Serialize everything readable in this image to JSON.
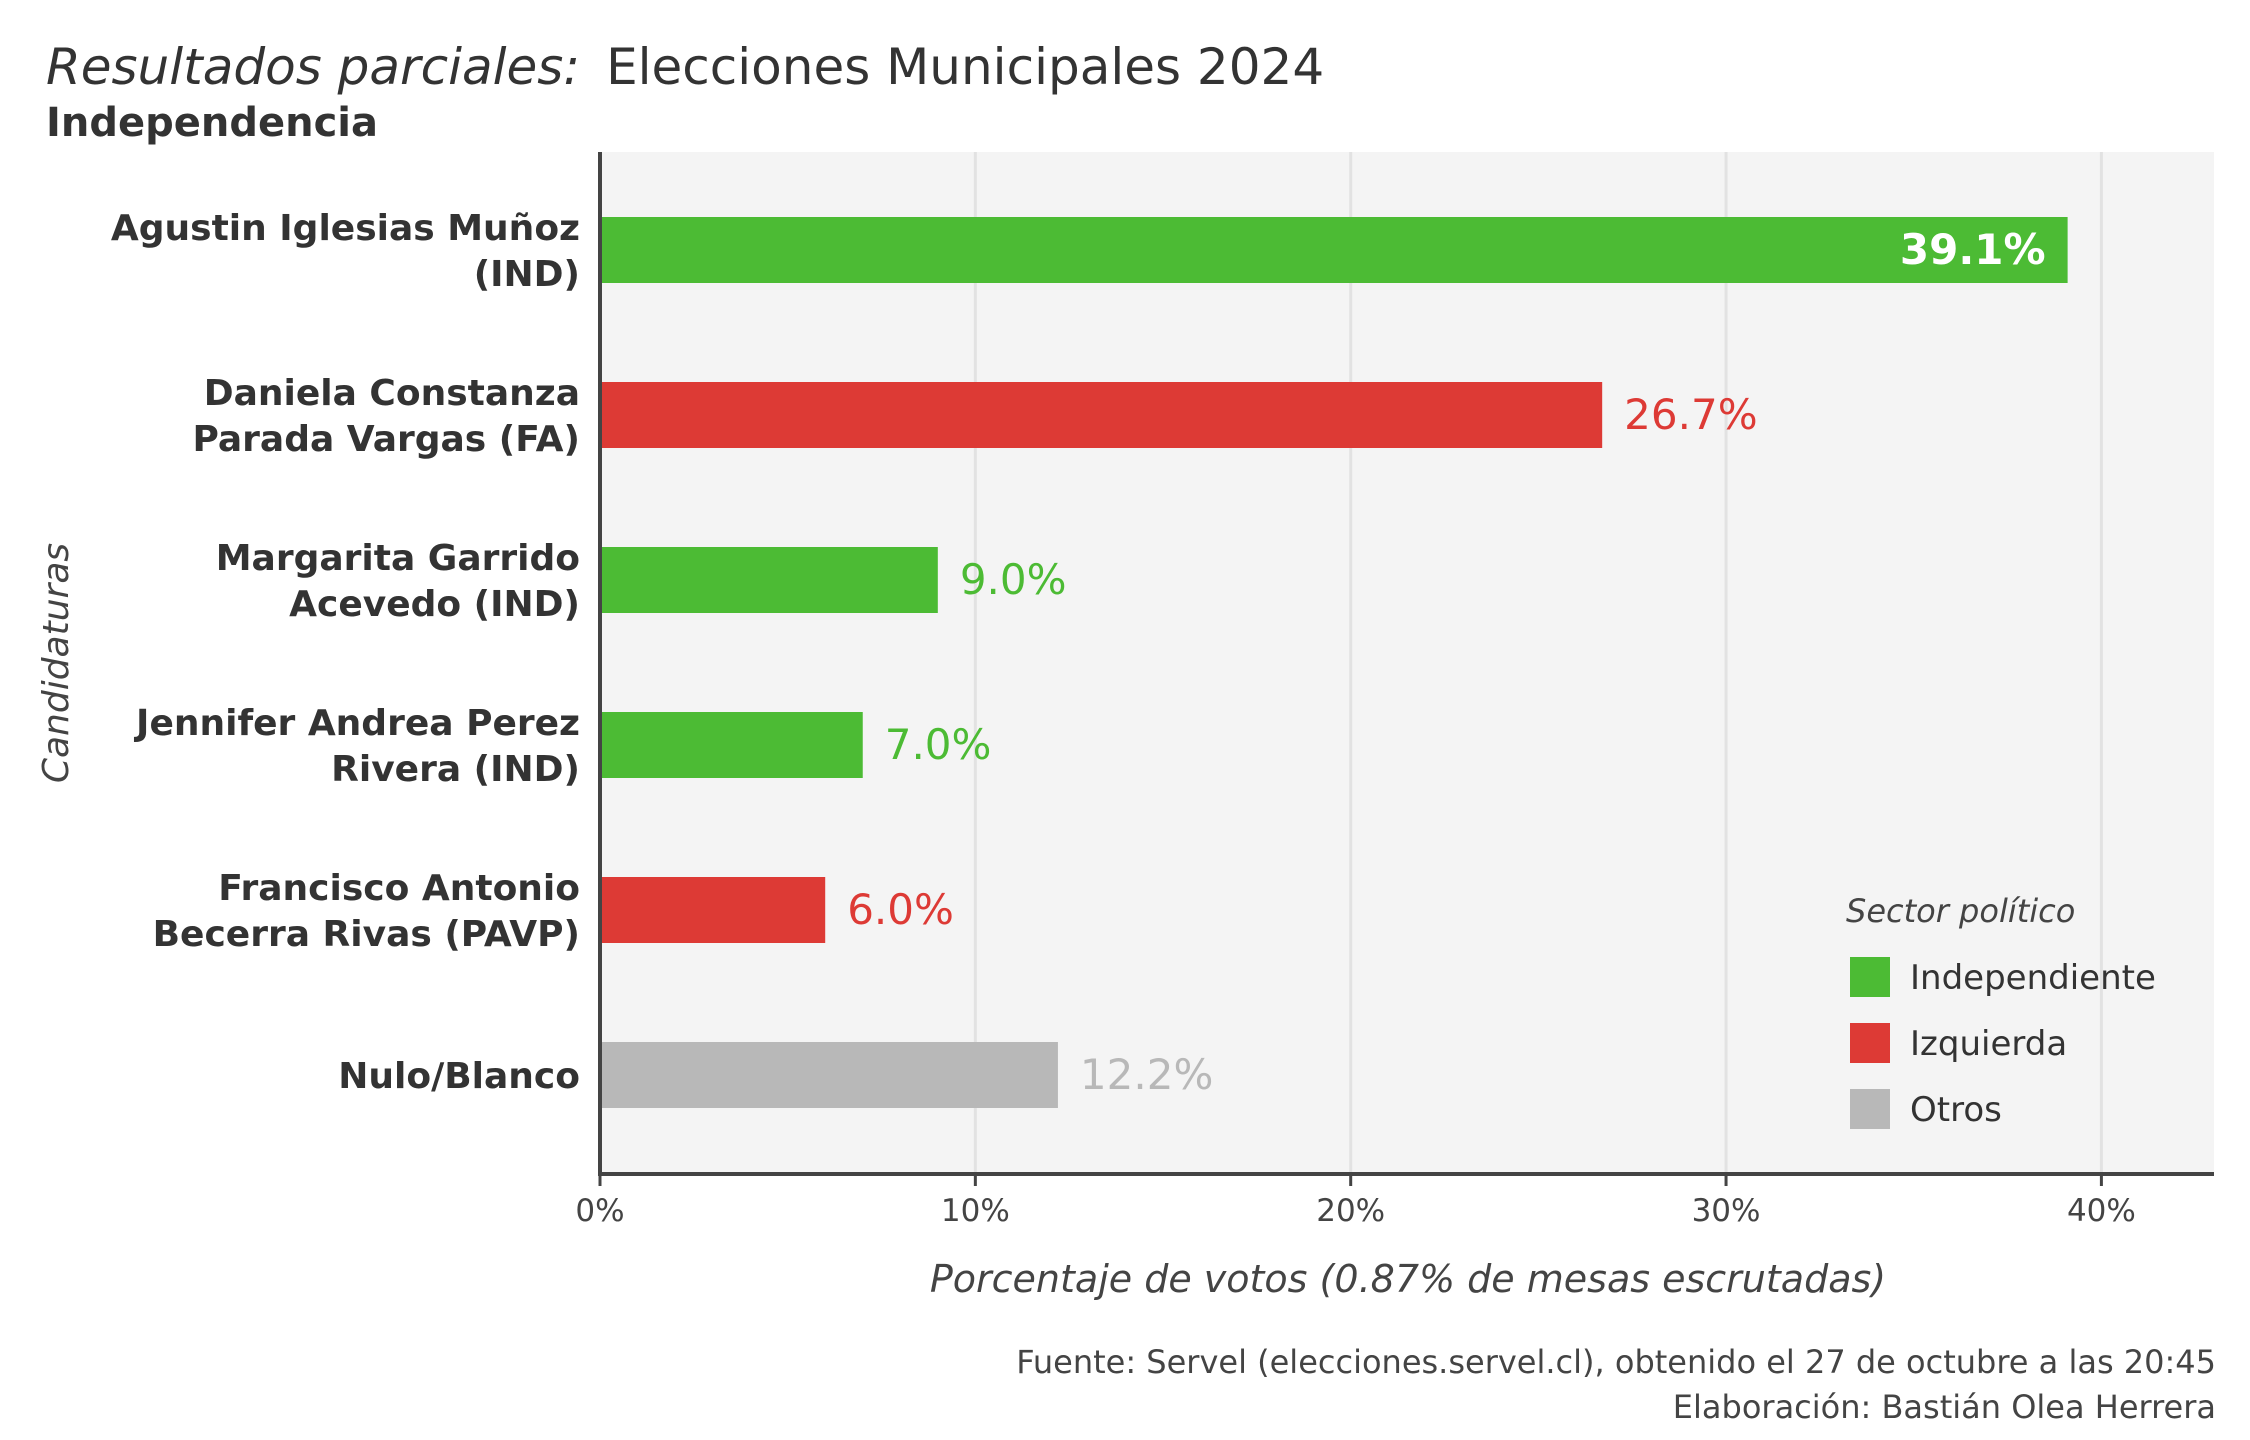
{
  "header": {
    "title_italic": "Resultados parciales:",
    "title_main": "Elecciones Municipales 2024",
    "subtitle": "Independencia"
  },
  "chart_data": {
    "type": "bar",
    "orientation": "horizontal",
    "categories": [
      [
        "Agustin Iglesias Muñoz",
        "(IND)"
      ],
      [
        "Daniela Constanza",
        "Parada Vargas (FA)"
      ],
      [
        "Margarita Garrido",
        "Acevedo (IND)"
      ],
      [
        "Jennifer Andrea Perez",
        "Rivera (IND)"
      ],
      [
        "Francisco Antonio",
        "Becerra Rivas (PAVP)"
      ],
      [
        "Nulo/Blanco"
      ]
    ],
    "values": [
      39.1,
      26.7,
      9.0,
      7.0,
      6.0,
      12.2
    ],
    "value_labels": [
      "39.1%",
      "26.7%",
      "9.0%",
      "7.0%",
      "6.0%",
      "12.2%"
    ],
    "sectors": [
      "Independiente",
      "Izquierda",
      "Independiente",
      "Independiente",
      "Izquierda",
      "Otros"
    ],
    "xlabel": "Porcentaje de votos (0.87% de mesas escrutadas)",
    "ylabel": "Candidaturas",
    "xlim": [
      0,
      43
    ],
    "x_ticks": [
      0,
      10,
      20,
      30,
      40
    ],
    "x_tick_labels": [
      "0%",
      "10%",
      "20%",
      "30%",
      "40%"
    ],
    "grid": true,
    "legend": {
      "title": "Sector político",
      "placement": "bottom-right",
      "items": [
        {
          "name": "Independiente",
          "color": "#4cbb34"
        },
        {
          "name": "Izquierda",
          "color": "#dd3a35"
        },
        {
          "name": "Otros",
          "color": "#b8b8b8"
        }
      ]
    }
  },
  "colors": {
    "Independiente": "#4cbb34",
    "Izquierda": "#dd3a35",
    "Otros": "#b8b8b8",
    "inside_label": "#ffffff",
    "panel_bg": "#f4f4f4",
    "axis": "#444444"
  },
  "footer": {
    "source": "Fuente: Servel (elecciones.servel.cl), obtenido el 27 de octubre a las 20:45",
    "author": "Elaboración: Bastián Olea Herrera"
  }
}
